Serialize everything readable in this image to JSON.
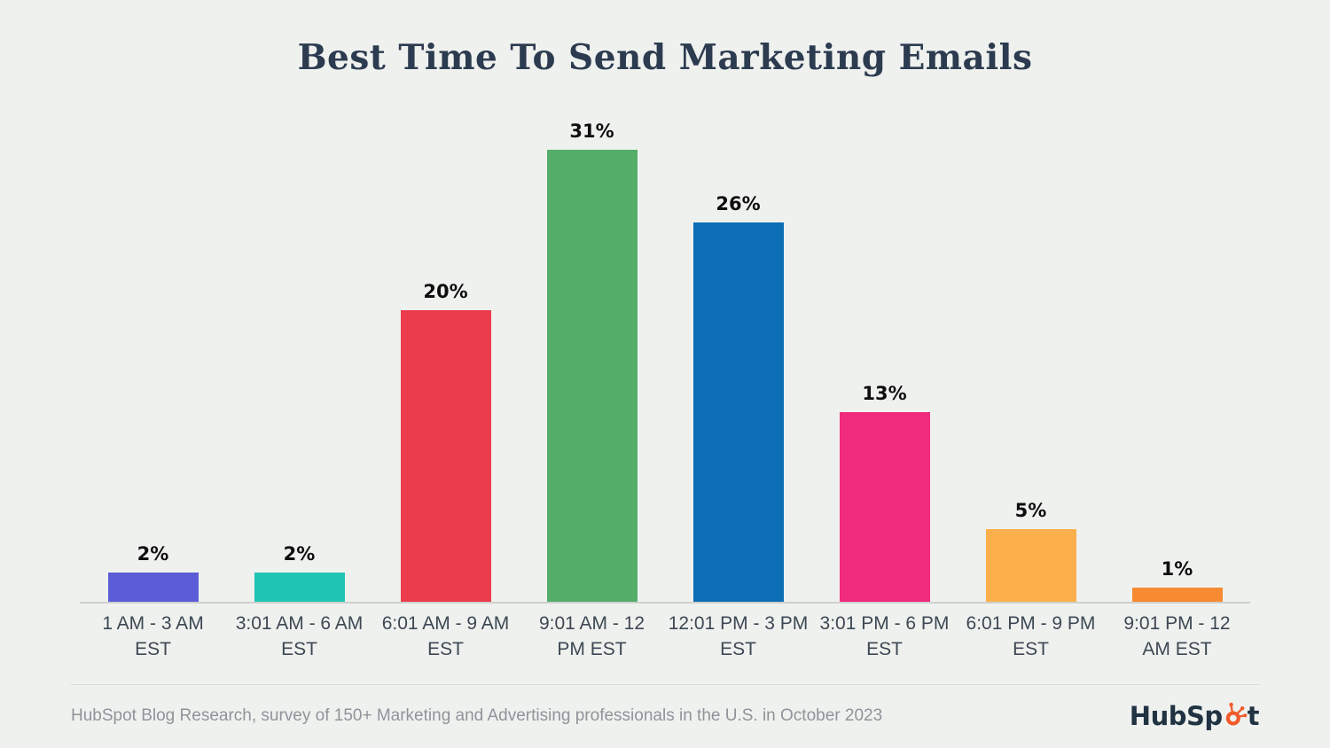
{
  "title": "Best Time To Send Marketing Emails",
  "chart_data": {
    "type": "bar",
    "title": "Best Time To Send Marketing Emails",
    "categories": [
      "1 AM - 3 AM EST",
      "3:01 AM - 6 AM EST",
      "6:01 AM - 9 AM EST",
      "9:01 AM - 12 PM EST",
      "12:01 PM - 3 PM EST",
      "3:01 PM - 6 PM EST",
      "6:01 PM - 9 PM EST",
      "9:01 PM - 12 AM EST"
    ],
    "category_lines": [
      [
        "1 AM - 3 AM",
        "EST"
      ],
      [
        "3:01 AM - 6 AM",
        "EST"
      ],
      [
        "6:01 AM - 9 AM",
        "EST"
      ],
      [
        "9:01 AM - 12",
        "PM EST"
      ],
      [
        "12:01 PM - 3 PM",
        "EST"
      ],
      [
        "3:01 PM - 6 PM",
        "EST"
      ],
      [
        "6:01 PM - 9 PM",
        "EST"
      ],
      [
        "9:01 PM - 12",
        "AM EST"
      ]
    ],
    "values": [
      2,
      2,
      20,
      31,
      26,
      13,
      5,
      1
    ],
    "value_labels": [
      "2%",
      "2%",
      "20%",
      "31%",
      "26%",
      "13%",
      "5%",
      "1%"
    ],
    "bar_colors": [
      "#5c5cd6",
      "#20c4b5",
      "#eb3c4d",
      "#54ae6a",
      "#0d6eb6",
      "#f02a7d",
      "#fbb04b",
      "#f78b31"
    ],
    "xlabel": "",
    "ylabel": "",
    "ylim": [
      0,
      33
    ],
    "grid": false,
    "legend": false
  },
  "footer": {
    "source_text": "HubSpot Blog Research, survey of 150+ Marketing and Advertising professionals in the U.S. in October 2023",
    "logo_text_before": "HubSp",
    "logo_text_after": "t"
  },
  "colors": {
    "background": "#eff1ef",
    "title": "#2c3b4f",
    "value_label": "#0e0e0e",
    "axis_label": "#3d4853",
    "axis_line": "#cfd1ce",
    "divider": "#d9dbd8",
    "footer_text": "#8f9499",
    "logo_text": "#213343",
    "logo_sprocket": "#f15b2a"
  }
}
